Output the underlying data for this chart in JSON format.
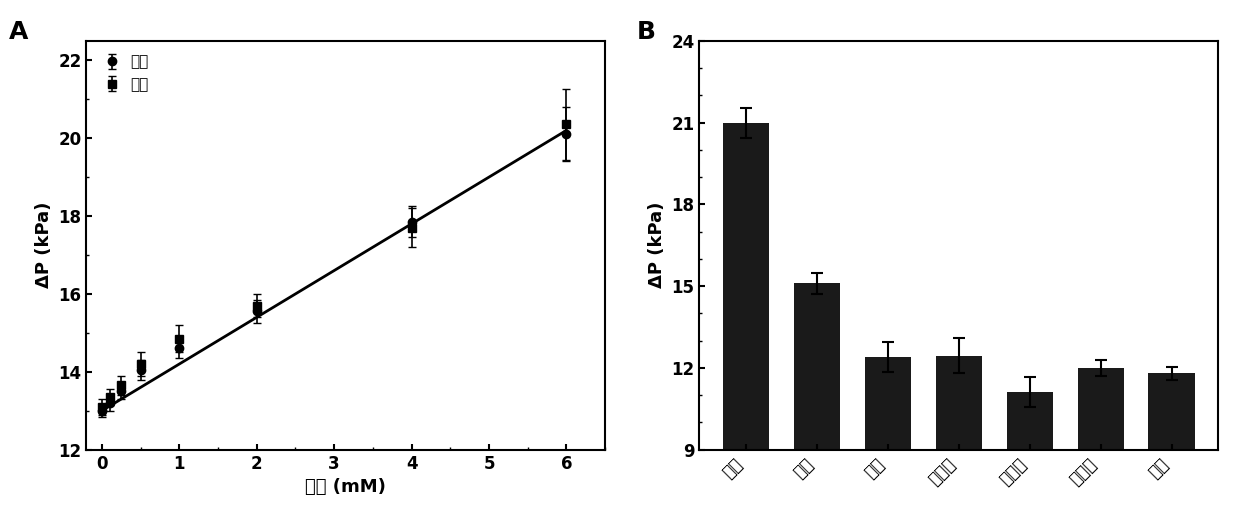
{
  "panel_A": {
    "title": "A",
    "xlabel": "酒精 (mM)",
    "ylabel": "ΔP (kPa)",
    "xlim": [
      -0.2,
      6.5
    ],
    "ylim": [
      12,
      22.5
    ],
    "xticks": [
      0,
      1,
      2,
      3,
      4,
      5,
      6
    ],
    "yticks": [
      12,
      14,
      16,
      18,
      20,
      22
    ],
    "series": [
      {
        "label": "缓冲",
        "marker": "o",
        "x": [
          0.0,
          0.1,
          0.25,
          0.5,
          1.0,
          2.0,
          4.0,
          6.0
        ],
        "y": [
          13.0,
          13.2,
          13.5,
          14.05,
          14.6,
          15.55,
          17.85,
          20.1
        ],
        "yerr": [
          0.15,
          0.2,
          0.2,
          0.25,
          0.25,
          0.3,
          0.4,
          0.7
        ]
      },
      {
        "label": "唤液",
        "marker": "s",
        "x": [
          0.0,
          0.1,
          0.25,
          0.5,
          1.0,
          2.0,
          4.0,
          6.0
        ],
        "y": [
          13.1,
          13.35,
          13.65,
          14.2,
          14.85,
          15.7,
          17.7,
          20.35
        ],
        "yerr": [
          0.2,
          0.2,
          0.25,
          0.3,
          0.35,
          0.3,
          0.5,
          0.9
        ]
      }
    ],
    "fit_x": [
      0.0,
      6.0
    ],
    "fit_y": [
      13.0,
      20.2
    ],
    "line_color": "#1a1a1a",
    "marker_color": "#1a1a1a"
  },
  "panel_B": {
    "title": "B",
    "ylabel": "ΔP (kPa)",
    "ylim": [
      9,
      24
    ],
    "yticks": [
      9,
      12,
      15,
      18,
      21,
      24
    ],
    "categories": [
      "酒精",
      "甲醇",
      "乙醇",
      "异丙醇",
      "丙三醇",
      "异丁醇",
      "空白"
    ],
    "values": [
      21.0,
      15.1,
      12.4,
      12.45,
      11.1,
      12.0,
      11.8
    ],
    "yerr": [
      0.55,
      0.4,
      0.55,
      0.65,
      0.55,
      0.3,
      0.25
    ],
    "bar_color": "#1a1a1a"
  },
  "background_color": "#ffffff",
  "font_color": "#000000"
}
